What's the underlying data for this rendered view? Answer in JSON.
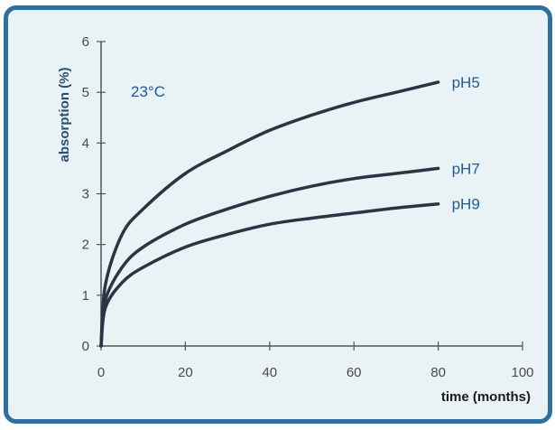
{
  "chart_data": {
    "type": "line",
    "title": "",
    "annotation": "23°C",
    "xlabel": "time (months)",
    "ylabel": "absorption (%)",
    "xlim": [
      0,
      100
    ],
    "ylim": [
      0,
      6
    ],
    "xticks": [
      0,
      20,
      40,
      60,
      80,
      100
    ],
    "yticks": [
      0,
      1,
      2,
      3,
      4,
      5,
      6
    ],
    "grid": false,
    "series": [
      {
        "name": "pH5",
        "x": [
          0,
          1,
          5,
          10,
          20,
          30,
          40,
          50,
          60,
          70,
          80
        ],
        "y": [
          0,
          1.2,
          2.2,
          2.7,
          3.4,
          3.85,
          4.25,
          4.55,
          4.8,
          5.0,
          5.2
        ]
      },
      {
        "name": "pH7",
        "x": [
          0,
          1,
          5,
          10,
          20,
          30,
          40,
          50,
          60,
          70,
          80
        ],
        "y": [
          0,
          0.9,
          1.55,
          1.95,
          2.4,
          2.7,
          2.95,
          3.15,
          3.3,
          3.4,
          3.5
        ]
      },
      {
        "name": "pH9",
        "x": [
          0,
          1,
          5,
          10,
          20,
          30,
          40,
          50,
          60,
          70,
          80
        ],
        "y": [
          0,
          0.75,
          1.25,
          1.55,
          1.95,
          2.2,
          2.4,
          2.52,
          2.62,
          2.72,
          2.8
        ]
      }
    ],
    "colors": {
      "line": "#2a3544",
      "axis": "#555555",
      "label": "#1e5b99",
      "frame": "#2f6f9e",
      "background": "#e9f2f4"
    }
  }
}
